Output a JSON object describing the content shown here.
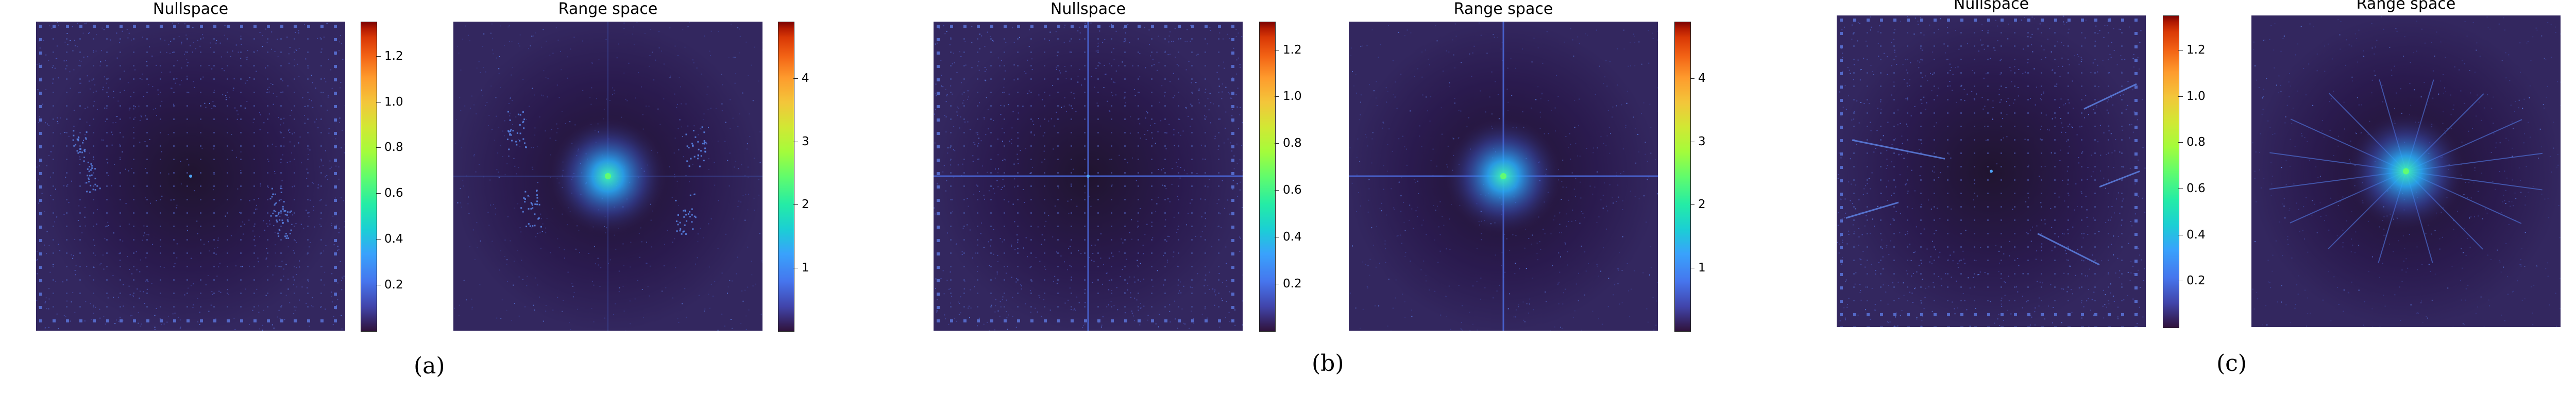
{
  "figure": {
    "groups": [
      {
        "label": "(a)",
        "panels": [
          {
            "title": "Nullspace",
            "heatmap_variant": "null-ring",
            "colorbar": {
              "colormap": "turbo",
              "min": 0,
              "max": 1.35,
              "ticks": [
                "0.2",
                "0.4",
                "0.6",
                "0.8",
                "1.0",
                "1.2"
              ],
              "tick_values": [
                0.2,
                0.4,
                0.6,
                0.8,
                1.0,
                1.2
              ]
            }
          },
          {
            "title": "Range space",
            "heatmap_variant": "range-blobs",
            "colorbar": {
              "colormap": "turbo",
              "min": 0,
              "max": 4.9,
              "ticks": [
                "1",
                "2",
                "3",
                "4"
              ],
              "tick_values": [
                1,
                2,
                3,
                4
              ]
            }
          }
        ]
      },
      {
        "label": "(b)",
        "panels": [
          {
            "title": "Nullspace",
            "heatmap_variant": "null-cross",
            "colorbar": {
              "colormap": "turbo",
              "min": 0,
              "max": 1.32,
              "ticks": [
                "0.2",
                "0.4",
                "0.6",
                "0.8",
                "1.0",
                "1.2"
              ],
              "tick_values": [
                0.2,
                0.4,
                0.6,
                0.8,
                1.0,
                1.2
              ]
            }
          },
          {
            "title": "Range space",
            "heatmap_variant": "range-cross",
            "colorbar": {
              "colormap": "turbo",
              "min": 0,
              "max": 4.9,
              "ticks": [
                "1",
                "2",
                "3",
                "4"
              ],
              "tick_values": [
                1,
                2,
                3,
                4
              ]
            }
          }
        ]
      },
      {
        "label": "(c)",
        "panels": [
          {
            "title": "Nullspace",
            "heatmap_variant": "null-streaks",
            "colorbar": {
              "colormap": "turbo",
              "min": 0,
              "max": 1.35,
              "ticks": [
                "0.2",
                "0.4",
                "0.6",
                "0.8",
                "1.0",
                "1.2"
              ],
              "tick_values": [
                0.2,
                0.4,
                0.6,
                0.8,
                1.0,
                1.2
              ]
            }
          },
          {
            "title": "Range space",
            "heatmap_variant": "range-star",
            "colorbar": {
              "colormap": "turbo",
              "min": 0,
              "max": 4.9,
              "ticks": [
                "1",
                "2",
                "3",
                "4"
              ],
              "tick_values": [
                1,
                2,
                3,
                4
              ]
            }
          }
        ]
      }
    ]
  }
}
